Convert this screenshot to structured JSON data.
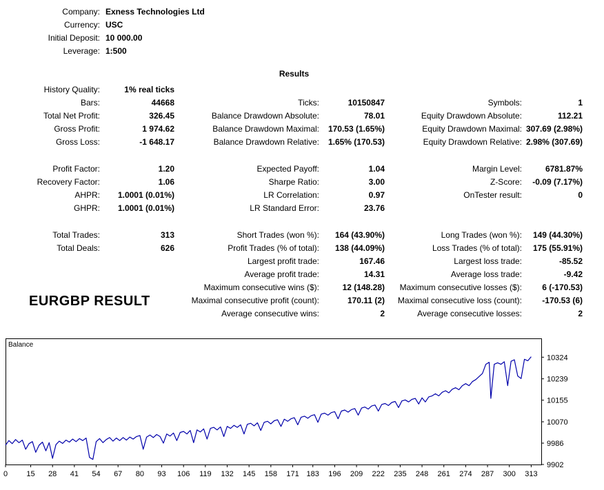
{
  "account": {
    "rows": [
      {
        "label": "Company:",
        "value": "Exness Technologies Ltd"
      },
      {
        "label": "Currency:",
        "value": "USC"
      },
      {
        "label": "Initial Deposit:",
        "value": "10 000.00"
      },
      {
        "label": "Leverage:",
        "value": "1:500"
      }
    ]
  },
  "results": {
    "title": "Results",
    "watermark": "EURGBP RESULT",
    "rows": [
      [
        {
          "l": "History Quality:",
          "v": "1% real ticks"
        },
        null,
        null
      ],
      [
        {
          "l": "Bars:",
          "v": "44668"
        },
        {
          "l": "Ticks:",
          "v": "10150847"
        },
        {
          "l": "Symbols:",
          "v": "1"
        }
      ],
      [
        {
          "l": "Total Net Profit:",
          "v": "326.45"
        },
        {
          "l": "Balance Drawdown Absolute:",
          "v": "78.01"
        },
        {
          "l": "Equity Drawdown Absolute:",
          "v": "112.21"
        }
      ],
      [
        {
          "l": "Gross Profit:",
          "v": "1 974.62"
        },
        {
          "l": "Balance Drawdown Maximal:",
          "v": "170.53 (1.65%)"
        },
        {
          "l": "Equity Drawdown Maximal:",
          "v": "307.69 (2.98%)"
        }
      ],
      [
        {
          "l": "Gross Loss:",
          "v": "-1 648.17"
        },
        {
          "l": "Balance Drawdown Relative:",
          "v": "1.65% (170.53)"
        },
        {
          "l": "Equity Drawdown Relative:",
          "v": "2.98% (307.69)"
        }
      ],
      "gap",
      [
        {
          "l": "Profit Factor:",
          "v": "1.20"
        },
        {
          "l": "Expected Payoff:",
          "v": "1.04"
        },
        {
          "l": "Margin Level:",
          "v": "6781.87%"
        }
      ],
      [
        {
          "l": "Recovery Factor:",
          "v": "1.06"
        },
        {
          "l": "Sharpe Ratio:",
          "v": "3.00"
        },
        {
          "l": "Z-Score:",
          "v": "-0.09 (7.17%)"
        }
      ],
      [
        {
          "l": "AHPR:",
          "v": "1.0001 (0.01%)"
        },
        {
          "l": "LR Correlation:",
          "v": "0.97"
        },
        {
          "l": "OnTester result:",
          "v": "0"
        }
      ],
      [
        {
          "l": "GHPR:",
          "v": "1.0001 (0.01%)"
        },
        {
          "l": "LR Standard Error:",
          "v": "23.76"
        },
        null
      ],
      "gap",
      [
        {
          "l": "Total Trades:",
          "v": "313"
        },
        {
          "l": "Short Trades (won %):",
          "v": "164 (43.90%)"
        },
        {
          "l": "Long Trades (won %):",
          "v": "149 (44.30%)"
        }
      ],
      [
        {
          "l": "Total Deals:",
          "v": "626"
        },
        {
          "l": "Profit Trades (% of total):",
          "v": "138 (44.09%)"
        },
        {
          "l": "Loss Trades (% of total):",
          "v": "175 (55.91%)"
        }
      ],
      [
        null,
        {
          "l": "Largest profit trade:",
          "v": "167.46"
        },
        {
          "l": "Largest loss trade:",
          "v": "-85.52"
        }
      ],
      [
        null,
        {
          "l": "Average profit trade:",
          "v": "14.31"
        },
        {
          "l": "Average loss trade:",
          "v": "-9.42"
        }
      ],
      [
        null,
        {
          "l": "Maximum consecutive wins ($):",
          "v": "12 (148.28)"
        },
        {
          "l": "Maximum consecutive losses ($):",
          "v": "6 (-170.53)"
        }
      ],
      [
        null,
        {
          "l": "Maximal consecutive profit (count):",
          "v": "170.11 (2)"
        },
        {
          "l": "Maximal consecutive loss (count):",
          "v": "-170.53 (6)"
        }
      ],
      [
        null,
        {
          "l": "Average consecutive wins:",
          "v": "2"
        },
        {
          "l": "Average consecutive losses:",
          "v": "2"
        }
      ]
    ]
  },
  "chart_data": {
    "type": "line",
    "title": "Balance",
    "series_label": "Balance",
    "line_color": "#0000AA",
    "legend_position": "top-left",
    "grid": false,
    "x_ticks": [
      0,
      15,
      28,
      41,
      54,
      67,
      80,
      93,
      106,
      119,
      132,
      145,
      158,
      171,
      183,
      196,
      209,
      222,
      235,
      248,
      261,
      274,
      287,
      300,
      313
    ],
    "y_ticks": [
      9902,
      9986,
      10070,
      10155,
      10239,
      10324
    ],
    "x_range": [
      0,
      319
    ],
    "y_range": [
      9902,
      10398
    ],
    "points": [
      [
        0,
        9978
      ],
      [
        2,
        9996
      ],
      [
        4,
        9984
      ],
      [
        6,
        10000
      ],
      [
        8,
        9988
      ],
      [
        10,
        9998
      ],
      [
        12,
        9962
      ],
      [
        14,
        9984
      ],
      [
        16,
        9992
      ],
      [
        18,
        9950
      ],
      [
        20,
        9978
      ],
      [
        22,
        9990
      ],
      [
        24,
        9956
      ],
      [
        26,
        9988
      ],
      [
        28,
        9926
      ],
      [
        30,
        9980
      ],
      [
        32,
        9994
      ],
      [
        34,
        9985
      ],
      [
        36,
        9998
      ],
      [
        38,
        9990
      ],
      [
        40,
        10002
      ],
      [
        42,
        9992
      ],
      [
        44,
        10004
      ],
      [
        46,
        9996
      ],
      [
        48,
        10006
      ],
      [
        50,
        9930
      ],
      [
        52,
        9922
      ],
      [
        54,
        9992
      ],
      [
        56,
        10004
      ],
      [
        58,
        9988
      ],
      [
        60,
        10000
      ],
      [
        62,
        10008
      ],
      [
        64,
        9994
      ],
      [
        66,
        10006
      ],
      [
        68,
        9996
      ],
      [
        70,
        10008
      ],
      [
        72,
        9998
      ],
      [
        74,
        10010
      ],
      [
        76,
        10002
      ],
      [
        78,
        10012
      ],
      [
        80,
        10016
      ],
      [
        82,
        9962
      ],
      [
        84,
        10010
      ],
      [
        86,
        10018
      ],
      [
        88,
        10008
      ],
      [
        90,
        10020
      ],
      [
        92,
        10012
      ],
      [
        94,
        9986
      ],
      [
        96,
        10022
      ],
      [
        98,
        10014
      ],
      [
        100,
        10026
      ],
      [
        102,
        9996
      ],
      [
        104,
        10028
      ],
      [
        106,
        10032
      ],
      [
        108,
        10022
      ],
      [
        110,
        10036
      ],
      [
        112,
        9988
      ],
      [
        114,
        10038
      ],
      [
        116,
        10030
      ],
      [
        118,
        10042
      ],
      [
        120,
        10002
      ],
      [
        122,
        10044
      ],
      [
        124,
        10048
      ],
      [
        126,
        10038
      ],
      [
        128,
        10050
      ],
      [
        130,
        10012
      ],
      [
        132,
        10052
      ],
      [
        134,
        10044
      ],
      [
        136,
        10056
      ],
      [
        138,
        10048
      ],
      [
        140,
        10058
      ],
      [
        142,
        10022
      ],
      [
        144,
        10060
      ],
      [
        146,
        10064
      ],
      [
        148,
        10054
      ],
      [
        150,
        10066
      ],
      [
        152,
        10036
      ],
      [
        154,
        10068
      ],
      [
        156,
        10072
      ],
      [
        158,
        10062
      ],
      [
        160,
        10074
      ],
      [
        162,
        10078
      ],
      [
        164,
        10052
      ],
      [
        166,
        10080
      ],
      [
        168,
        10072
      ],
      [
        170,
        10082
      ],
      [
        172,
        10086
      ],
      [
        174,
        10058
      ],
      [
        176,
        10088
      ],
      [
        178,
        10092
      ],
      [
        180,
        10084
      ],
      [
        182,
        10094
      ],
      [
        184,
        10098
      ],
      [
        186,
        10068
      ],
      [
        188,
        10100
      ],
      [
        190,
        10104
      ],
      [
        192,
        10096
      ],
      [
        194,
        10106
      ],
      [
        196,
        10110
      ],
      [
        198,
        10082
      ],
      [
        200,
        10112
      ],
      [
        202,
        10116
      ],
      [
        204,
        10108
      ],
      [
        206,
        10118
      ],
      [
        208,
        10122
      ],
      [
        210,
        10096
      ],
      [
        212,
        10124
      ],
      [
        214,
        10128
      ],
      [
        216,
        10120
      ],
      [
        218,
        10132
      ],
      [
        220,
        10136
      ],
      [
        222,
        10112
      ],
      [
        224,
        10138
      ],
      [
        226,
        10142
      ],
      [
        228,
        10134
      ],
      [
        230,
        10146
      ],
      [
        232,
        10150
      ],
      [
        234,
        10126
      ],
      [
        236,
        10152
      ],
      [
        238,
        10156
      ],
      [
        240,
        10148
      ],
      [
        242,
        10158
      ],
      [
        244,
        10162
      ],
      [
        246,
        10140
      ],
      [
        248,
        10164
      ],
      [
        250,
        10148
      ],
      [
        252,
        10168
      ],
      [
        254,
        10172
      ],
      [
        256,
        10180
      ],
      [
        258,
        10172
      ],
      [
        260,
        10186
      ],
      [
        262,
        10192
      ],
      [
        264,
        10184
      ],
      [
        266,
        10198
      ],
      [
        268,
        10204
      ],
      [
        270,
        10196
      ],
      [
        272,
        10212
      ],
      [
        274,
        10220
      ],
      [
        276,
        10212
      ],
      [
        278,
        10228
      ],
      [
        280,
        10236
      ],
      [
        282,
        10248
      ],
      [
        284,
        10260
      ],
      [
        286,
        10296
      ],
      [
        288,
        10304
      ],
      [
        289,
        10162
      ],
      [
        291,
        10296
      ],
      [
        293,
        10302
      ],
      [
        295,
        10296
      ],
      [
        297,
        10306
      ],
      [
        299,
        10212
      ],
      [
        301,
        10308
      ],
      [
        303,
        10314
      ],
      [
        305,
        10250
      ],
      [
        307,
        10240
      ],
      [
        309,
        10316
      ],
      [
        311,
        10310
      ],
      [
        313,
        10326
      ]
    ]
  }
}
